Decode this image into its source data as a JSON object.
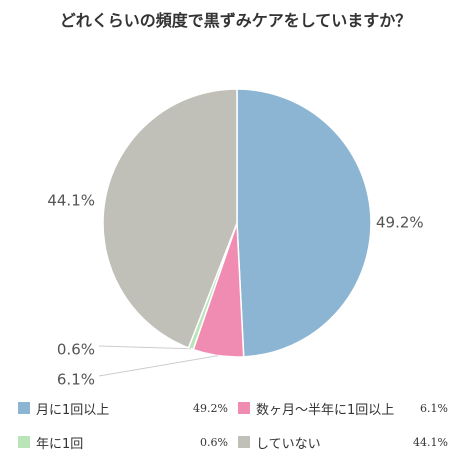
{
  "title": "どれくらいの頻度で黒ずみケアをしていますか？",
  "chart_data": {
    "type": "pie",
    "title": "どれくらいの頻度で黒ずみケアをしていますか？",
    "unit": "%",
    "slices": [
      {
        "label": "月に1回以上",
        "value": 49.2,
        "display": "49.2%",
        "color": "#8CB4D3"
      },
      {
        "label": "数ヶ月〜半年に1回以上",
        "value": 6.1,
        "display": "6.1%",
        "color": "#F08CB1"
      },
      {
        "label": "年に1回",
        "value": 0.6,
        "display": "0.6%",
        "color": "#B9E5B8"
      },
      {
        "label": "していない",
        "value": 44.1,
        "display": "44.1%",
        "color": "#C0C0B8"
      }
    ],
    "legend_placement": "bottom"
  }
}
